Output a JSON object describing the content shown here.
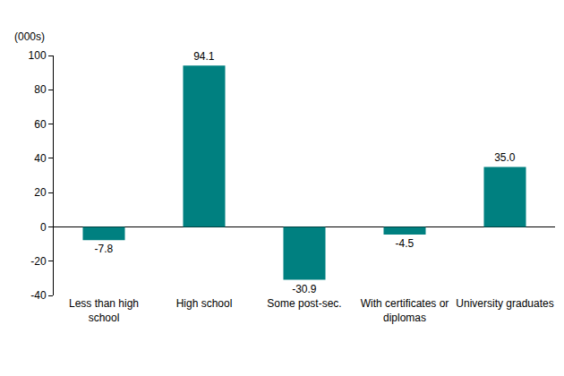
{
  "chart_data": {
    "type": "bar",
    "ylabel": "(000s)",
    "categories": [
      "Less than high school",
      "High school",
      "Some post-sec.",
      "With certificates or diplomas",
      "University graduates"
    ],
    "values": [
      -7.8,
      94.1,
      -30.9,
      -4.5,
      35.0
    ],
    "value_labels": [
      "-7.8",
      "94.1",
      "-30.9",
      "-4.5",
      "35.0"
    ],
    "color": "#008080",
    "ylim": [
      -40,
      100
    ],
    "yticks": [
      -40,
      -20,
      0,
      20,
      40,
      60,
      80,
      100
    ],
    "grid": false,
    "data_labels": true
  }
}
